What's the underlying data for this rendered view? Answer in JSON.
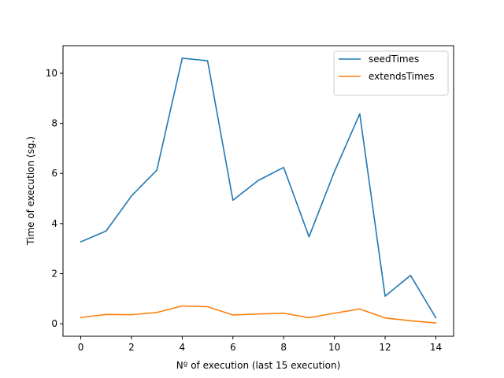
{
  "chart_data": {
    "type": "line",
    "title": "",
    "xlabel": "Nº of execution (last 15 execution)",
    "ylabel": "Time of execution (sg.)",
    "x": [
      0,
      1,
      2,
      3,
      4,
      5,
      6,
      7,
      8,
      9,
      10,
      11,
      12,
      13,
      14
    ],
    "xlim": [
      -0.7,
      14.7
    ],
    "ylim": [
      -0.5,
      11.1
    ],
    "xticks": [
      0,
      2,
      4,
      6,
      8,
      10,
      12,
      14
    ],
    "yticks": [
      0,
      2,
      4,
      6,
      8,
      10
    ],
    "grid": false,
    "legend_position": "top-right",
    "series": [
      {
        "name": "seedTimes",
        "color": "#1f77b4",
        "values": [
          3.27,
          3.7,
          5.1,
          6.13,
          10.6,
          10.5,
          4.93,
          5.72,
          6.24,
          3.47,
          6.07,
          8.38,
          1.1,
          1.93,
          0.24
        ]
      },
      {
        "name": "extendsTimes",
        "color": "#ff7f0e",
        "values": [
          0.25,
          0.37,
          0.36,
          0.45,
          0.71,
          0.68,
          0.35,
          0.39,
          0.42,
          0.24,
          0.42,
          0.59,
          0.23,
          0.12,
          0.03
        ]
      }
    ]
  }
}
